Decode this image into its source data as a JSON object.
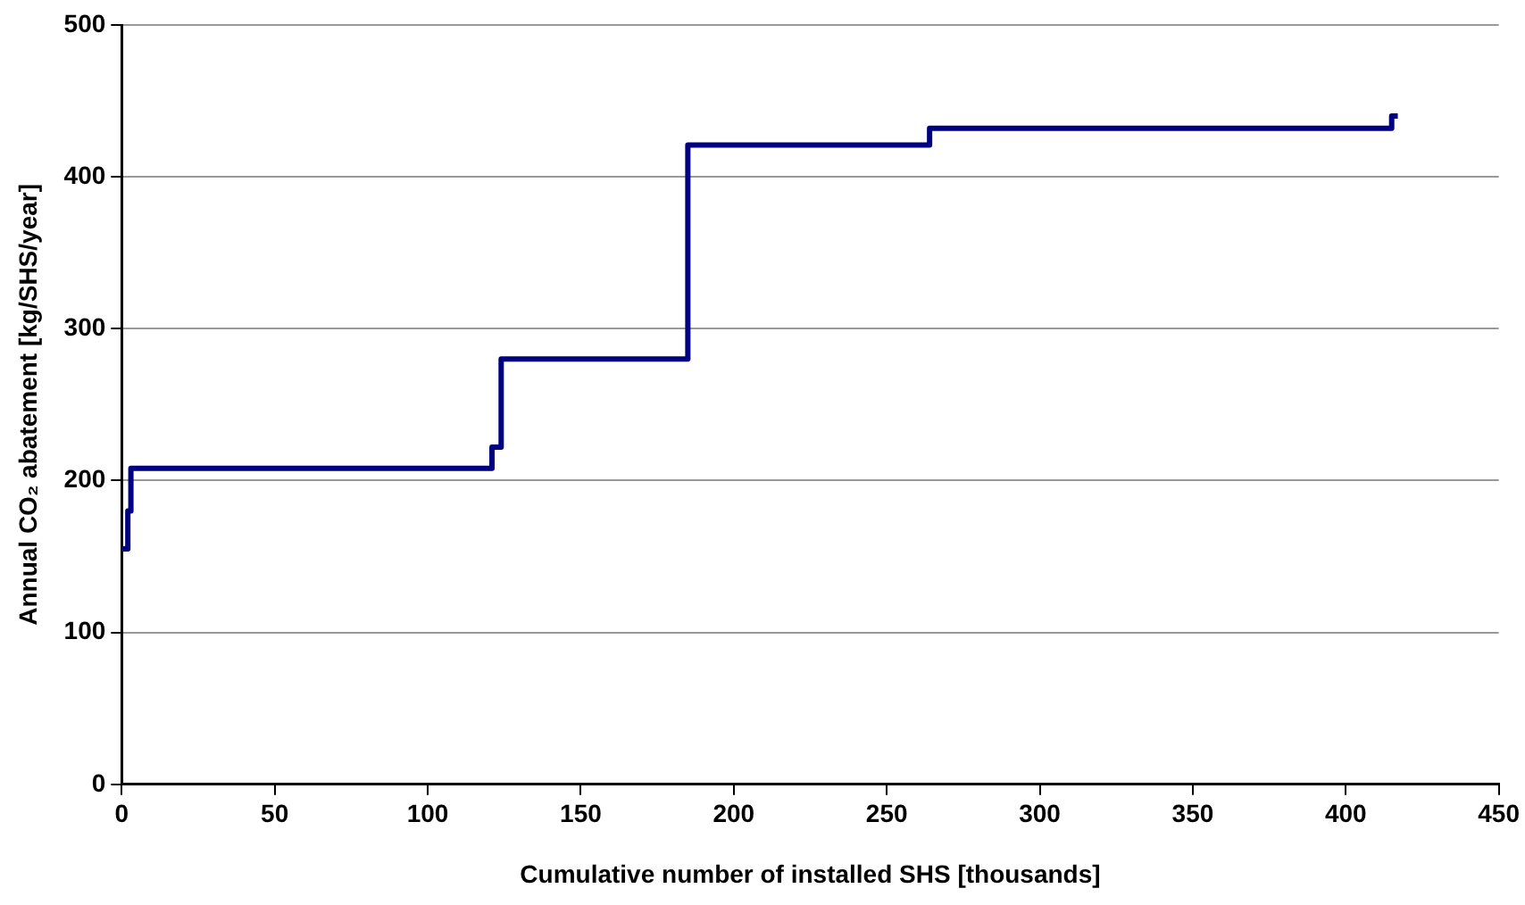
{
  "chart_data": {
    "type": "step",
    "xlabel": "Cumulative number of installed SHS [thousands]",
    "ylabel": "Annual CO₂ abatement [kg/SHS/year]",
    "x": [
      0,
      2,
      3,
      121,
      124,
      185,
      264,
      415,
      417
    ],
    "values": [
      155,
      180,
      208,
      222,
      280,
      421,
      432,
      440,
      440
    ],
    "color": "#000080",
    "xlim": [
      0,
      450
    ],
    "xticks": [
      0,
      50,
      100,
      150,
      200,
      250,
      300,
      350,
      400,
      450
    ],
    "ylim": [
      0,
      500
    ],
    "yticks": [
      0,
      100,
      200,
      300,
      400,
      500
    ],
    "grid": "y",
    "legend": false,
    "marker": "none",
    "line_style": "solid"
  }
}
